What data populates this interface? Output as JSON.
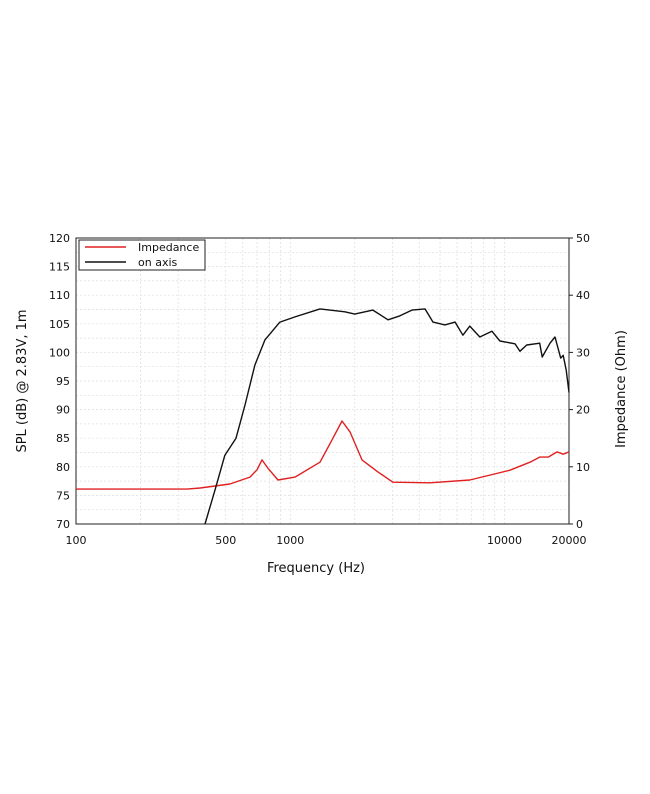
{
  "chart_data": {
    "type": "line",
    "title": "",
    "xlabel": "Frequency (Hz)",
    "ylabel": "SPL (dB) @ 2.83V, 1m",
    "y2label": "Impedance (Ohm)",
    "xscale": "log",
    "xlim": [
      100,
      20000
    ],
    "ylim": [
      70,
      120
    ],
    "y2lim": [
      0,
      50
    ],
    "grid": true,
    "legend": "top-left",
    "x_ticks": [
      100,
      500,
      1000,
      10000,
      20000
    ],
    "x_tick_labels": [
      "100",
      "500",
      "1000",
      "10000",
      "20000"
    ],
    "y_ticks": [
      70,
      75,
      80,
      85,
      90,
      95,
      100,
      105,
      110,
      115,
      120
    ],
    "y_tick_labels": [
      "70",
      "75",
      "80",
      "85",
      "90",
      "95",
      "100",
      "105",
      "110",
      "115",
      "120"
    ],
    "y2_ticks": [
      0,
      10,
      20,
      30,
      40,
      50
    ],
    "y2_tick_labels": [
      "0",
      "10",
      "20",
      "30",
      "40",
      "50"
    ],
    "series": [
      {
        "name": "Impedance",
        "axis": "right",
        "color": "#e02020",
        "x": [
          100,
          200,
          330,
          380,
          523,
          649,
          700,
          738,
          785,
          877,
          1052,
          1376,
          1566,
          1743,
          1900,
          2163,
          2566,
          3013,
          4488,
          6890,
          10600,
          13150,
          14600,
          16000,
          17600,
          18800,
          20000
        ],
        "y": [
          6.1,
          6.1,
          6.1,
          6.3,
          7.0,
          8.2,
          9.5,
          11.2,
          9.8,
          7.7,
          8.2,
          10.8,
          14.7,
          18.0,
          16.1,
          11.2,
          9.1,
          7.3,
          7.2,
          7.7,
          9.4,
          10.8,
          11.7,
          11.7,
          12.6,
          12.2,
          12.6
        ]
      },
      {
        "name": "on axis",
        "axis": "left",
        "color": "#111111",
        "x": [
          400,
          446,
          495,
          558,
          615,
          684,
          762,
          895,
          1052,
          1376,
          1799,
          2000,
          2432,
          2858,
          3252,
          3698,
          4253,
          4637,
          5272,
          5880,
          6395,
          6890,
          7670,
          8730,
          9520,
          11200,
          11800,
          12700,
          14600,
          15000,
          16300,
          17200,
          18300,
          18800,
          19400,
          20000
        ],
        "y": [
          70,
          76,
          82,
          85,
          90.8,
          97.8,
          102.2,
          105.3,
          106.2,
          107.6,
          107.1,
          106.7,
          107.4,
          105.7,
          106.4,
          107.4,
          107.6,
          105.3,
          104.8,
          105.3,
          103.0,
          104.6,
          102.7,
          103.7,
          102.0,
          101.5,
          100.2,
          101.3,
          101.6,
          99.2,
          101.6,
          102.7,
          99.0,
          99.5,
          96.9,
          93.0
        ]
      }
    ]
  }
}
